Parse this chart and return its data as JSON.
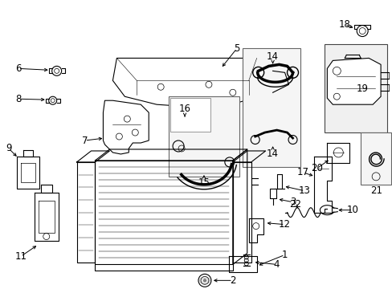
{
  "bg_color": "#ffffff",
  "fig_width": 4.89,
  "fig_height": 3.6,
  "dpi": 100,
  "line_color": "#000000",
  "label_fontsize": 8.5,
  "arrow_fontsize": 7.0
}
